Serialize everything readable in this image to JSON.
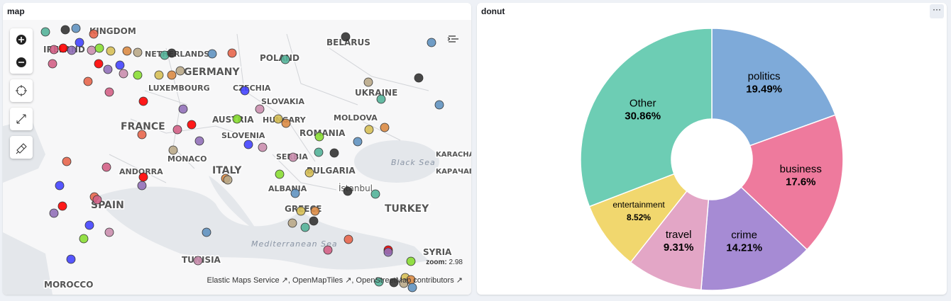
{
  "panels": {
    "map": {
      "title": "map"
    },
    "donut": {
      "title": "donut"
    }
  },
  "map": {
    "labels": [
      "KINGDOM",
      "IRELAND",
      "NETHERLANDS",
      "GERMANY",
      "POLAND",
      "BELARUS",
      "UKRAINE",
      "CZECHIA",
      "SLOVAKIA",
      "LUXEMBOURG",
      "FRANCE",
      "AUSTRIA",
      "HUNGARY",
      "MOLDOVA",
      "ROMANIA",
      "SLOVENIA",
      "SERBIA",
      "MONACO",
      "ITALY",
      "ANDORRA",
      "BULGARIA",
      "SPAIN",
      "ALBANIA",
      "İstanbul",
      "GREECE",
      "TURKEY",
      "TUNISIA",
      "SYRIA",
      "MOROCCO",
      "КАРАЧАЕВО-ЧЕРКЕСИЯ",
      "KARACHAY-CHERKESSIA"
    ],
    "seas": [
      "Black Sea",
      "Mediterranean Sea"
    ],
    "zoom_label": "zoom:",
    "zoom": "2.98",
    "attribution": [
      "Elastic Maps Service",
      "OpenMapTiles",
      "OpenStreetMap contributors"
    ]
  },
  "chart_data": {
    "type": "donut",
    "categories": [
      "politics",
      "business",
      "crime",
      "travel",
      "entertainment",
      "Other"
    ],
    "values": [
      19.49,
      17.6,
      14.21,
      9.31,
      8.52,
      30.86
    ],
    "value_labels": [
      "19.49%",
      "17.6%",
      "14.21%",
      "9.31%",
      "8.52%",
      "30.86%"
    ],
    "colors": [
      "#7eaad9",
      "#ee7a9d",
      "#a68bd4",
      "#e3a6c6",
      "#f1d76e",
      "#6dcdb4"
    ]
  }
}
